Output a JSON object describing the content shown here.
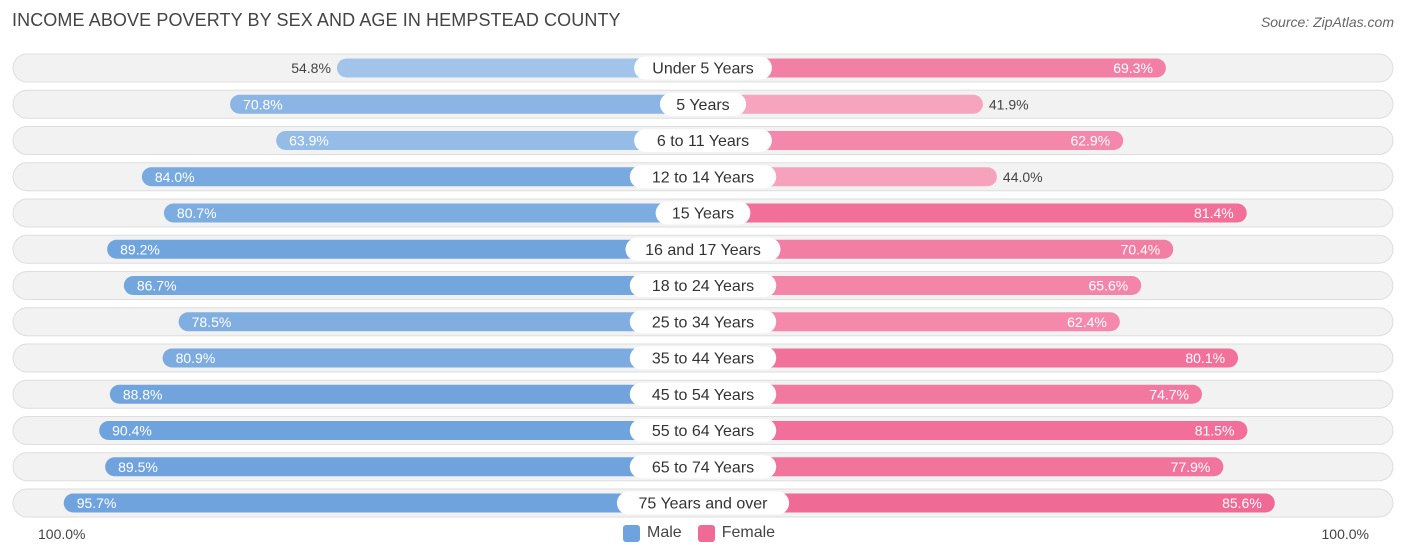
{
  "title": "INCOME ABOVE POVERTY BY SEX AND AGE IN HEMPSTEAD COUNTY",
  "source": "Source: ZipAtlas.com",
  "colors": {
    "male": "#6fa3dd",
    "male_light": "#a9c8ec",
    "female": "#f06a96",
    "female_light": "#f7a8c1"
  },
  "axis": {
    "left_label": "100.0%",
    "right_label": "100.0%"
  },
  "legend": {
    "male": "Male",
    "female": "Female"
  },
  "chart_data": {
    "type": "bar",
    "orientation": "horizontal-diverging",
    "title": "INCOME ABOVE POVERTY BY SEX AND AGE IN HEMPSTEAD COUNTY",
    "xlim": [
      0,
      100
    ],
    "categories": [
      "Under 5 Years",
      "5 Years",
      "6 to 11 Years",
      "12 to 14 Years",
      "15 Years",
      "16 and 17 Years",
      "18 to 24 Years",
      "25 to 34 Years",
      "35 to 44 Years",
      "45 to 54 Years",
      "55 to 64 Years",
      "65 to 74 Years",
      "75 Years and over"
    ],
    "series": [
      {
        "name": "Male",
        "values": [
          54.8,
          70.8,
          63.9,
          84.0,
          80.7,
          89.2,
          86.7,
          78.5,
          80.9,
          88.8,
          90.4,
          89.5,
          95.7
        ]
      },
      {
        "name": "Female",
        "values": [
          69.3,
          41.9,
          62.9,
          44.0,
          81.4,
          70.4,
          65.6,
          62.4,
          80.1,
          74.7,
          81.5,
          77.9,
          85.6
        ]
      }
    ],
    "value_labels": {
      "male": [
        "54.8%",
        "70.8%",
        "63.9%",
        "84.0%",
        "80.7%",
        "89.2%",
        "86.7%",
        "78.5%",
        "80.9%",
        "88.8%",
        "90.4%",
        "89.5%",
        "95.7%"
      ],
      "female": [
        "69.3%",
        "41.9%",
        "62.9%",
        "44.0%",
        "81.4%",
        "70.4%",
        "65.6%",
        "62.4%",
        "80.1%",
        "74.7%",
        "81.5%",
        "77.9%",
        "85.6%"
      ]
    }
  }
}
